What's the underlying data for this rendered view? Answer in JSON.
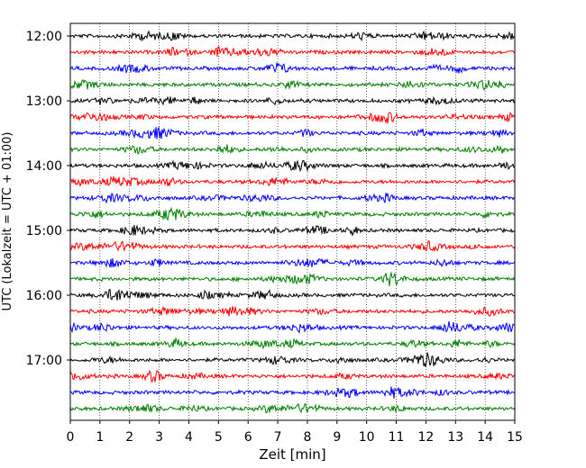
{
  "chart_data": {
    "type": "line",
    "title": "",
    "xlabel": "Zeit  [min]",
    "ylabel": "UTC (Lokalzeit = UTC + 01:00)",
    "xlim": [
      0,
      15
    ],
    "x_ticks": [
      "0",
      "1",
      "2",
      "3",
      "4",
      "5",
      "6",
      "7",
      "8",
      "9",
      "10",
      "11",
      "12",
      "13",
      "14",
      "15"
    ],
    "y_ticks": [
      "12:00",
      "13:00",
      "14:00",
      "15:00",
      "16:00",
      "17:00"
    ],
    "grid": "vertical dotted",
    "trace_start": "12:00",
    "trace_interval_min": 15,
    "trace_count": 24,
    "colors": [
      "#000000",
      "#ff0000",
      "#0000ff",
      "#008000"
    ]
  }
}
